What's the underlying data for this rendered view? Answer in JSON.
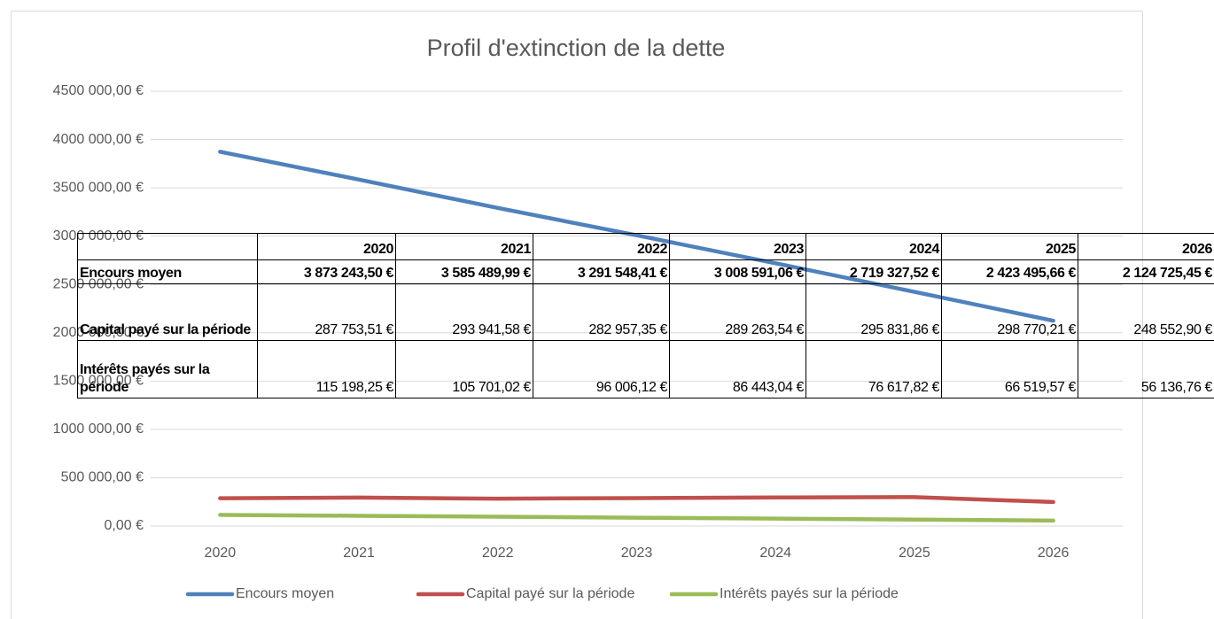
{
  "chart_data": {
    "type": "line",
    "title": "Profil d'extinction de la dette",
    "categories": [
      "2020",
      "2021",
      "2022",
      "2023",
      "2024",
      "2025",
      "2026"
    ],
    "series": [
      {
        "name": "Encours moyen",
        "color": "#4f81bd",
        "values": [
          3873243.5,
          3585489.99,
          3291548.41,
          3008591.06,
          2719327.52,
          2423495.66,
          2124725.45
        ],
        "value_labels": [
          "3 873 243,50 €",
          "3 585 489,99 €",
          "3 291 548,41 €",
          "3 008 591,06 €",
          "2 719 327,52 €",
          "2 423 495,66 €",
          "2 124 725,45 €"
        ]
      },
      {
        "name": "Capital payé sur la période",
        "color": "#c0504d",
        "values": [
          287753.51,
          293941.58,
          282957.35,
          289263.54,
          295831.86,
          298770.21,
          248552.9
        ],
        "value_labels": [
          "287 753,51 €",
          "293 941,58 €",
          "282 957,35 €",
          "289 263,54 €",
          "295 831,86 €",
          "298 770,21 €",
          "248 552,90 €"
        ]
      },
      {
        "name": "Intérêts payés sur la période",
        "color": "#9bbb59",
        "values": [
          115198.25,
          105701.02,
          96006.12,
          86443.04,
          76617.82,
          66519.57,
          56136.76
        ],
        "value_labels": [
          "115 198,25 €",
          "105 701,02 €",
          "96 006,12 €",
          "86 443,04 €",
          "76 617,82 €",
          "66 519,57 €",
          "56 136,76 €"
        ]
      }
    ],
    "ylim": [
      0,
      4500000
    ],
    "yticks": [
      {
        "value": 0,
        "label": "0,00 €"
      },
      {
        "value": 500000,
        "label": "500 000,00 €"
      },
      {
        "value": 1000000,
        "label": "1000 000,00 €"
      },
      {
        "value": 1500000,
        "label": "1500 000,00 €"
      },
      {
        "value": 2000000,
        "label": "2000 000,00 €"
      },
      {
        "value": 2500000,
        "label": "2500 000,00 €"
      },
      {
        "value": 3000000,
        "label": "3000 000,00 €"
      },
      {
        "value": 3500000,
        "label": "3500 000,00 €"
      },
      {
        "value": 4000000,
        "label": "4000 000,00 €"
      },
      {
        "value": 4500000,
        "label": "4500 000,00 €"
      }
    ],
    "grid": true,
    "legend": "bottom"
  }
}
